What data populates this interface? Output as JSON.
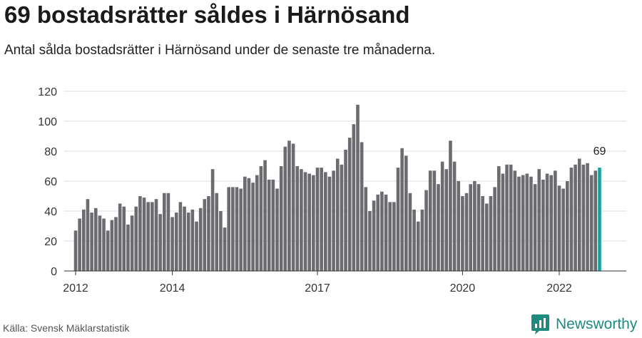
{
  "header": {
    "title": "69 bostadsrätter såldes i Härnösand",
    "subtitle": "Antal sålda bostadsrätter i Härnösand under de senaste tre månaderna."
  },
  "footer": {
    "source": "Källa: Svensk Mäklarstatistik",
    "brand": "Newsworthy",
    "brand_icon": "newsworthy-logo-icon"
  },
  "colors": {
    "bar": "#6b6b70",
    "highlight": "#1aa39a",
    "grid": "#dddddd",
    "axis": "#333333",
    "brand": "#1f8a80"
  },
  "chart_data": {
    "type": "bar",
    "title": "",
    "xlabel": "",
    "ylabel": "",
    "ylim": [
      0,
      120
    ],
    "yticks": [
      "0",
      "20",
      "40",
      "60",
      "80",
      "100",
      "120"
    ],
    "xticks": [
      "2012",
      "2014",
      "2017",
      "2020",
      "2022"
    ],
    "grid": true,
    "highlight_label": "69",
    "values": [
      27,
      35,
      41,
      48,
      39,
      42,
      37,
      35,
      27,
      34,
      36,
      45,
      43,
      31,
      37,
      43,
      50,
      49,
      46,
      46,
      48,
      38,
      52,
      52,
      36,
      39,
      46,
      43,
      39,
      41,
      33,
      42,
      48,
      50,
      68,
      52,
      40,
      29,
      56,
      56,
      56,
      55,
      63,
      62,
      59,
      64,
      70,
      74,
      61,
      61,
      55,
      70,
      83,
      87,
      85,
      70,
      68,
      66,
      65,
      64,
      69,
      69,
      66,
      63,
      67,
      75,
      71,
      81,
      89,
      98,
      111,
      86,
      56,
      40,
      47,
      51,
      53,
      51,
      46,
      46,
      69,
      82,
      77,
      52,
      41,
      33,
      41,
      54,
      67,
      67,
      58,
      73,
      68,
      87,
      73,
      60,
      50,
      52,
      58,
      60,
      58,
      50,
      45,
      50,
      56,
      70,
      65,
      71,
      71,
      67,
      63,
      64,
      65,
      63,
      58,
      68,
      61,
      65,
      64,
      67,
      57,
      55,
      60,
      69,
      71,
      75,
      71,
      72,
      64,
      67,
      69
    ]
  }
}
